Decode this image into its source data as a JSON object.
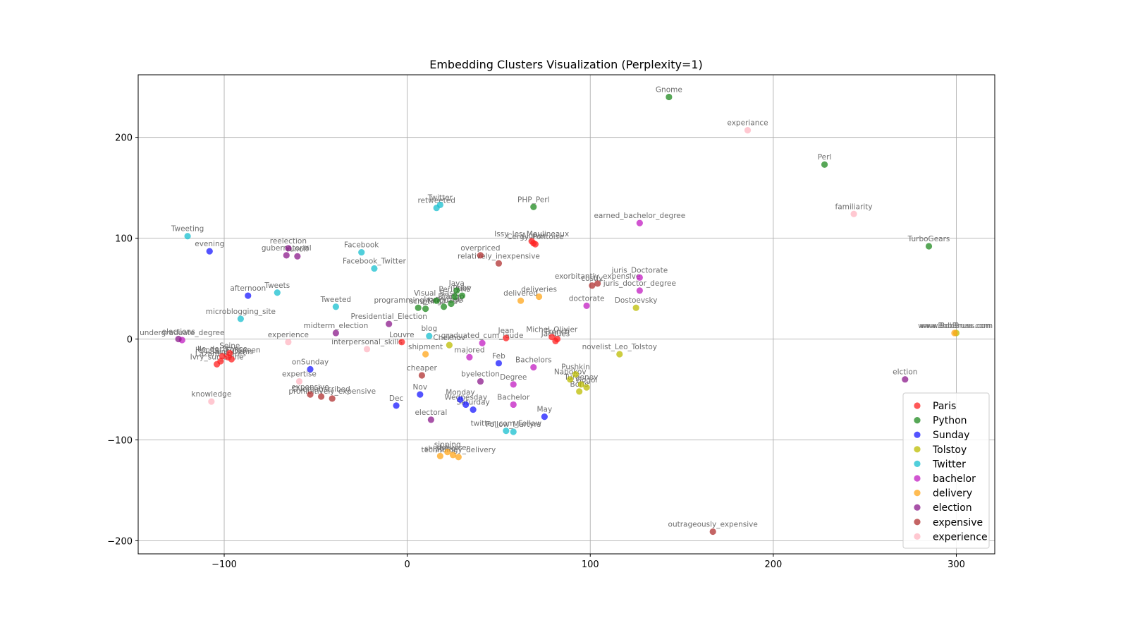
{
  "chart_data": {
    "type": "scatter",
    "title": "Embedding Clusters Visualization (Perplexity=1)",
    "xlabel": "",
    "ylabel": "",
    "xlim": [
      -147,
      321
    ],
    "ylim": [
      -213,
      262
    ],
    "xticks": [
      -100,
      0,
      100,
      200,
      300
    ],
    "yticks": [
      -200,
      -100,
      0,
      100,
      200
    ],
    "xtick_labels": [
      "−100",
      "0",
      "100",
      "200",
      "300"
    ],
    "ytick_labels": [
      "−200",
      "−100",
      "0",
      "100",
      "200"
    ],
    "grid": true,
    "legend_position": "lower-right",
    "series": [
      {
        "name": "Paris",
        "color": "#ff2020",
        "points": [
          {
            "x": 69,
            "y": 95,
            "label": "Aigner"
          },
          {
            "x": 70,
            "y": 94,
            "label": "Cergy_Pontoise"
          },
          {
            "x": 68,
            "y": 97,
            "label": "Issy_les_Moulineaux"
          },
          {
            "x": 82,
            "y": 0,
            "label": "French"
          },
          {
            "x": 79,
            "y": 2,
            "label": "Michel_Olivier"
          },
          {
            "x": 81,
            "y": -2,
            "label": "Jacques"
          },
          {
            "x": 54,
            "y": 1,
            "label": "Jean"
          },
          {
            "x": -102,
            "y": -22,
            "label": "Lazard_Freres"
          },
          {
            "x": -104,
            "y": -25,
            "label": "Ivry_sur_Seine"
          },
          {
            "x": -98,
            "y": -18,
            "label": "Hopital_Europeen"
          },
          {
            "x": -97,
            "y": -14,
            "label": "Seine"
          },
          {
            "x": -96,
            "y": -20,
            "label": "Saint_Denis"
          },
          {
            "x": -3,
            "y": -3,
            "label": "Louvre"
          },
          {
            "x": -101,
            "y": -17,
            "label": "Ile_de_France"
          }
        ]
      },
      {
        "name": "Python",
        "color": "#1f8a1f",
        "points": [
          {
            "x": 143,
            "y": 240,
            "label": "Gnome"
          },
          {
            "x": 228,
            "y": 173,
            "label": "Perl"
          },
          {
            "x": 285,
            "y": 92,
            "label": "TurboGears"
          },
          {
            "x": 69,
            "y": 131,
            "label": "PHP_Perl"
          },
          {
            "x": 30,
            "y": 43,
            "label": "Ruby"
          },
          {
            "x": 27,
            "y": 48,
            "label": "Java"
          },
          {
            "x": 24,
            "y": 35,
            "label": "Django"
          },
          {
            "x": 6,
            "y": 31,
            "label": "programming_language"
          },
          {
            "x": 10,
            "y": 30,
            "label": "scripting"
          },
          {
            "x": 20,
            "y": 32,
            "label": "IronPython"
          },
          {
            "x": 26,
            "y": 42,
            "label": "Perl_PHP"
          },
          {
            "x": 16,
            "y": 38,
            "label": "Visual_Basic"
          }
        ]
      },
      {
        "name": "Sunday",
        "color": "#1a1aff",
        "points": [
          {
            "x": -108,
            "y": 87,
            "label": "evening"
          },
          {
            "x": -87,
            "y": 43,
            "label": "afternoon"
          },
          {
            "x": -53,
            "y": -30,
            "label": "onSunday"
          },
          {
            "x": 50,
            "y": -24,
            "label": "Feb"
          },
          {
            "x": -6,
            "y": -66,
            "label": "Dec"
          },
          {
            "x": 7,
            "y": -55,
            "label": "Nov"
          },
          {
            "x": 29,
            "y": -60,
            "label": "Monday"
          },
          {
            "x": 32,
            "y": -65,
            "label": "Wednesday"
          },
          {
            "x": 36,
            "y": -70,
            "label": "Saturday"
          },
          {
            "x": 75,
            "y": -77,
            "label": "May"
          }
        ]
      },
      {
        "name": "Tolstoy",
        "color": "#bcbc00",
        "points": [
          {
            "x": 116,
            "y": -15,
            "label": "novelist_Leo_Tolstoy"
          },
          {
            "x": 125,
            "y": 31,
            "label": "Dostoevsky"
          },
          {
            "x": 300,
            "y": 6,
            "label": "www.BobBruss.com"
          },
          {
            "x": 23,
            "y": -6,
            "label": "Chekhov"
          },
          {
            "x": 92,
            "y": -35,
            "label": "Pushkin"
          },
          {
            "x": 95,
            "y": -45,
            "label": "Turgenev"
          },
          {
            "x": 98,
            "y": -48,
            "label": "Gogol"
          },
          {
            "x": 89,
            "y": -40,
            "label": "Nabokov"
          },
          {
            "x": 94,
            "y": -52,
            "label": "Boris"
          }
        ]
      },
      {
        "name": "Twitter",
        "color": "#17bfcf",
        "points": [
          {
            "x": -120,
            "y": 102,
            "label": "Tweeting"
          },
          {
            "x": 18,
            "y": 133,
            "label": "Twitter"
          },
          {
            "x": 16,
            "y": 130,
            "label": "retweeted"
          },
          {
            "x": -25,
            "y": 86,
            "label": "Facebook"
          },
          {
            "x": -18,
            "y": 70,
            "label": "Facebook_Twitter"
          },
          {
            "x": -71,
            "y": 46,
            "label": "Tweets"
          },
          {
            "x": -39,
            "y": 32,
            "label": "Tweeted"
          },
          {
            "x": -91,
            "y": 20,
            "label": "microblogging_site"
          },
          {
            "x": 12,
            "y": 3,
            "label": "blog"
          },
          {
            "x": 58,
            "y": -92,
            "label": "Follow_Martyrs"
          },
          {
            "x": 54,
            "y": -91,
            "label": "twitter_com_Follow"
          }
        ]
      },
      {
        "name": "bachelor",
        "color": "#c11cc1",
        "points": [
          {
            "x": 127,
            "y": 115,
            "label": "earned_bachelor_degree"
          },
          {
            "x": 127,
            "y": 61,
            "label": "juris_Doctorate"
          },
          {
            "x": 127,
            "y": 48,
            "label": "juris_doctor_degree"
          },
          {
            "x": 98,
            "y": 33,
            "label": "doctorate"
          },
          {
            "x": -123,
            "y": -1,
            "label": "undergraduate_degree"
          },
          {
            "x": 41,
            "y": -4,
            "label": "graduated_cum_laude"
          },
          {
            "x": 34,
            "y": -18,
            "label": "majored"
          },
          {
            "x": 69,
            "y": -28,
            "label": "Bachelors"
          },
          {
            "x": 58,
            "y": -65,
            "label": "Bachelor"
          },
          {
            "x": 58,
            "y": -45,
            "label": "Degree"
          }
        ]
      },
      {
        "name": "delivery",
        "color": "#ffa51a",
        "points": [
          {
            "x": 299,
            "y": 6,
            "label": "www.BobBruss.com"
          },
          {
            "x": 62,
            "y": 38,
            "label": "delivered"
          },
          {
            "x": 72,
            "y": 42,
            "label": "deliveries"
          },
          {
            "x": 10,
            "y": -15,
            "label": "shipment"
          },
          {
            "x": 25,
            "y": -115,
            "label": "deliverer"
          },
          {
            "x": 18,
            "y": -116,
            "label": "shipping"
          },
          {
            "x": 28,
            "y": -117,
            "label": "technology_delivery"
          },
          {
            "x": 22,
            "y": -112,
            "label": "sipping"
          }
        ]
      },
      {
        "name": "election",
        "color": "#8b1a8b",
        "points": [
          {
            "x": 272,
            "y": -40,
            "label": "elction"
          },
          {
            "x": -10,
            "y": 15,
            "label": "Presidential_Election"
          },
          {
            "x": -39,
            "y": 6,
            "label": "midterm_election"
          },
          {
            "x": 13,
            "y": -80,
            "label": "electoral"
          },
          {
            "x": 40,
            "y": -42,
            "label": "byelection"
          },
          {
            "x": -66,
            "y": 83,
            "label": "gubernatorial"
          },
          {
            "x": -65,
            "y": 90,
            "label": "reelection"
          },
          {
            "x": -60,
            "y": 82,
            "label": "runoff"
          },
          {
            "x": -125,
            "y": 0,
            "label": "elections"
          }
        ]
      },
      {
        "name": "expensive",
        "color": "#b03030",
        "points": [
          {
            "x": 167,
            "y": -191,
            "label": "outrageously_expensive"
          },
          {
            "x": 40,
            "y": 83,
            "label": "overpriced"
          },
          {
            "x": 50,
            "y": 75,
            "label": "relatively_inexpensive"
          },
          {
            "x": 104,
            "y": 55,
            "label": "exorbitantly_expensive"
          },
          {
            "x": 101,
            "y": 53,
            "label": "costly"
          },
          {
            "x": -41,
            "y": -59,
            "label": "prohibitively_expensive"
          },
          {
            "x": -47,
            "y": -57,
            "label": "Oversubscribed"
          },
          {
            "x": -53,
            "y": -55,
            "label": "expensive"
          },
          {
            "x": 8,
            "y": -36,
            "label": "cheaper"
          }
        ]
      },
      {
        "name": "experience",
        "color": "#ffb6c1",
        "points": [
          {
            "x": 186,
            "y": 207,
            "label": "experiance"
          },
          {
            "x": 244,
            "y": 124,
            "label": "familiarity"
          },
          {
            "x": -65,
            "y": -3,
            "label": "experience"
          },
          {
            "x": -107,
            "y": -62,
            "label": "knowledge"
          },
          {
            "x": -22,
            "y": -10,
            "label": "interpersonal_skills"
          },
          {
            "x": -59,
            "y": -42,
            "label": "expertise"
          }
        ]
      }
    ]
  }
}
